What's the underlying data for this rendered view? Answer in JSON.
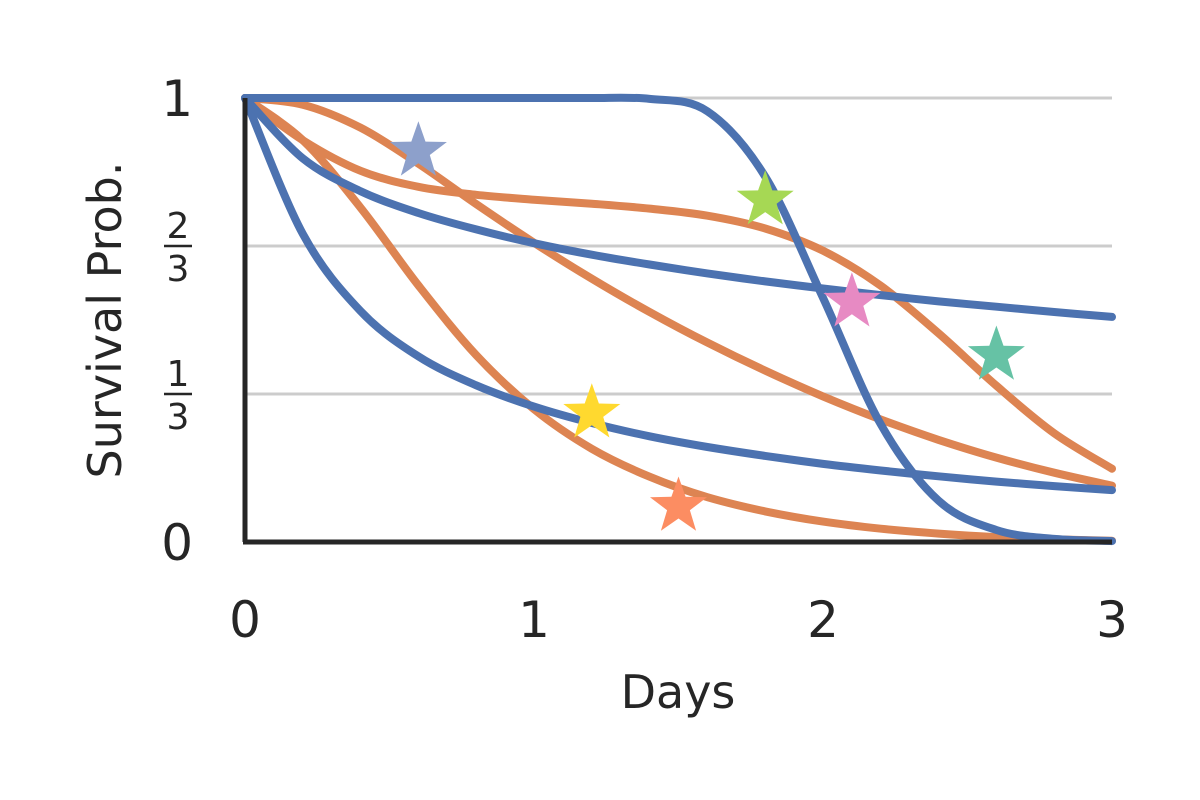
{
  "chart_data": {
    "type": "line",
    "xlabel": "Days",
    "ylabel": "Survival Prob.",
    "xlim": [
      0,
      3
    ],
    "ylim": [
      0,
      1
    ],
    "x_ticks": [
      {
        "value": 0,
        "label": "0"
      },
      {
        "value": 1,
        "label": "1"
      },
      {
        "value": 2,
        "label": "2"
      },
      {
        "value": 3,
        "label": "3"
      }
    ],
    "y_ticks": [
      {
        "value": 0,
        "label": "0",
        "fraction": false
      },
      {
        "value": 0.3333,
        "num": "1",
        "den": "3",
        "fraction": true
      },
      {
        "value": 0.6667,
        "num": "2",
        "den": "3",
        "fraction": true
      },
      {
        "value": 1,
        "label": "1",
        "fraction": false
      }
    ],
    "grid": "horizontal",
    "colors": {
      "blue": "#4c72b0",
      "orange": "#dd8452",
      "grid": "#cccccc",
      "axis": "#262626"
    },
    "x_samples": [
      0,
      0.2,
      0.4,
      0.6,
      0.8,
      1.0,
      1.2,
      1.4,
      1.6,
      1.8,
      2.0,
      2.2,
      2.4,
      2.6,
      2.8,
      3.0
    ],
    "series": [
      {
        "color": "#dd8452",
        "values": [
          1.0,
          0.905,
          0.753,
          0.578,
          0.421,
          0.299,
          0.21,
          0.147,
          0.101,
          0.069,
          0.046,
          0.03,
          0.019,
          0.011,
          0.006,
          0.003
        ]
      },
      {
        "color": "#dd8452",
        "values": [
          1.0,
          0.985,
          0.933,
          0.852,
          0.761,
          0.674,
          0.593,
          0.518,
          0.449,
          0.386,
          0.328,
          0.276,
          0.23,
          0.19,
          0.156,
          0.127
        ]
      },
      {
        "color": "#dd8452",
        "values": [
          1.0,
          0.905,
          0.836,
          0.8,
          0.782,
          0.771,
          0.762,
          0.751,
          0.735,
          0.706,
          0.656,
          0.577,
          0.47,
          0.352,
          0.245,
          0.165
        ]
      },
      {
        "color": "#4c72b0",
        "values": [
          1.0,
          0.694,
          0.52,
          0.418,
          0.353,
          0.305,
          0.268,
          0.238,
          0.214,
          0.194,
          0.176,
          0.161,
          0.148,
          0.136,
          0.126,
          0.117
        ]
      },
      {
        "color": "#4c72b0",
        "values": [
          1.0,
          0.864,
          0.79,
          0.741,
          0.704,
          0.673,
          0.647,
          0.625,
          0.605,
          0.587,
          0.571,
          0.556,
          0.542,
          0.53,
          0.518,
          0.507
        ]
      },
      {
        "color": "#4c72b0",
        "values": [
          1.0,
          1.0,
          1.0,
          1.0,
          1.0,
          1.0,
          1.0,
          0.998,
          0.97,
          0.823,
          0.55,
          0.265,
          0.093,
          0.027,
          0.007,
          0.002
        ]
      }
    ],
    "markers": [
      {
        "x": 0.6,
        "y": 0.88,
        "color": "#8da0cb"
      },
      {
        "x": 1.8,
        "y": 0.77,
        "color": "#a6d854"
      },
      {
        "x": 2.1,
        "y": 0.54,
        "color": "#e78ac3"
      },
      {
        "x": 2.6,
        "y": 0.42,
        "color": "#66c2a5"
      },
      {
        "x": 1.2,
        "y": 0.29,
        "color": "#ffd92f"
      },
      {
        "x": 1.5,
        "y": 0.08,
        "color": "#fc8d62"
      }
    ]
  }
}
